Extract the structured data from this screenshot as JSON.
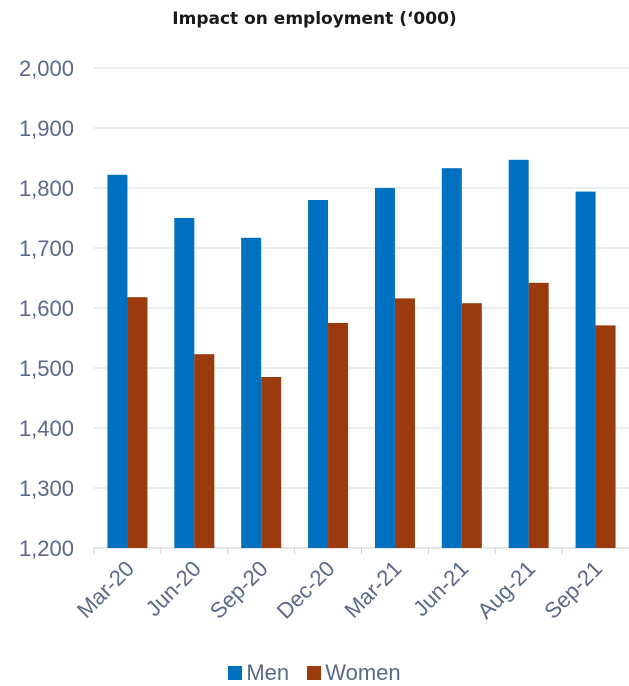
{
  "chart_data": {
    "type": "bar",
    "title": "Impact on employment (‘000)",
    "xlabel": "",
    "ylabel": "",
    "categories": [
      "Mar-20",
      "Jun-20",
      "Sep-20",
      "Dec-20",
      "Mar-21",
      "Jun-21",
      "Aug-21",
      "Sep-21"
    ],
    "series": [
      {
        "name": "Men",
        "color": "#0070c0",
        "values": [
          1822,
          1750,
          1717,
          1780,
          1800,
          1833,
          1847,
          1794
        ]
      },
      {
        "name": "Women",
        "color": "#9b3a0c",
        "values": [
          1618,
          1523,
          1485,
          1575,
          1616,
          1608,
          1642,
          1571
        ]
      }
    ],
    "ylim": [
      1200,
      2000
    ],
    "yticks": [
      "1,200",
      "1,300",
      "1,400",
      "1,500",
      "1,600",
      "1,700",
      "1,800",
      "1,900",
      "2,000"
    ],
    "grid": true,
    "legend": "bottom"
  }
}
